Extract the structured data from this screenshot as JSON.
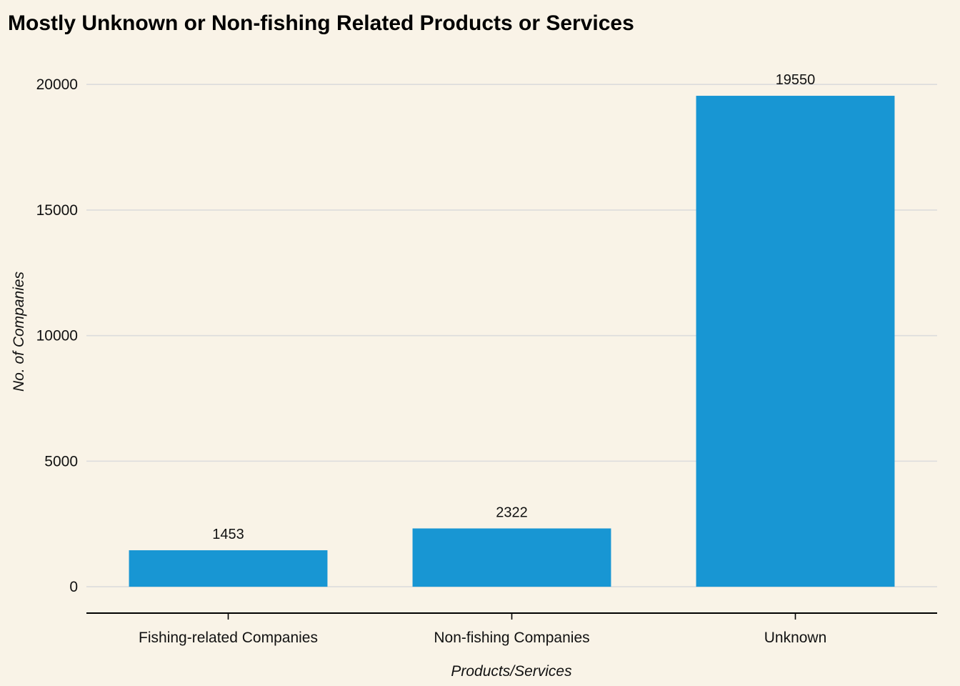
{
  "chart_data": {
    "type": "bar",
    "title": "Mostly Unknown or Non-fishing Related Products or Services",
    "xlabel": "Products/Services",
    "ylabel": "No. of Companies",
    "categories": [
      "Fishing-related Companies",
      "Non-fishing Companies",
      "Unknown"
    ],
    "values": [
      1453,
      2322,
      19550
    ],
    "data_labels": [
      "1453",
      "2322",
      "19550"
    ],
    "yticks": [
      0,
      5000,
      10000,
      15000,
      20000
    ],
    "ylim": [
      -1050,
      21600
    ],
    "grid": "horizontal",
    "legend": "none",
    "bar_color": "#1896D3",
    "background_color": "#F9F3E7"
  }
}
